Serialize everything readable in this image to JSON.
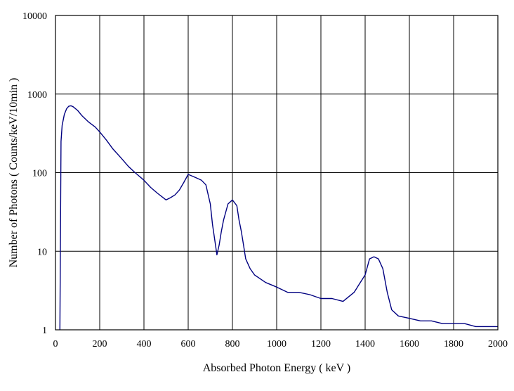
{
  "chart_data": {
    "type": "line",
    "title": "",
    "xlabel": "Absorbed Photon Energy  ( keV )",
    "ylabel": "Number  of Photons ( Counts/keV/10min  )",
    "xlim": [
      0,
      2000
    ],
    "ylim": [
      1,
      10000
    ],
    "yscale": "log",
    "grid": true,
    "legend": "none",
    "x_ticks": [
      "0",
      "200",
      "400",
      "600",
      "800",
      "1000",
      "1200",
      "1400",
      "1600",
      "1800",
      "2000"
    ],
    "y_ticks": [
      "1",
      "10",
      "100",
      "1000",
      "10000"
    ],
    "line_color": "#000080",
    "series": [
      {
        "x": [
          20,
          25,
          30,
          40,
          50,
          60,
          70,
          80,
          100,
          120,
          150,
          180,
          200,
          230,
          260,
          300,
          330,
          360,
          400,
          430,
          460,
          500,
          520,
          540,
          560,
          580,
          600,
          620,
          640,
          660,
          680,
          700,
          710,
          720,
          730,
          740,
          750,
          760,
          780,
          800,
          820,
          830,
          840,
          850,
          860,
          880,
          900,
          950,
          1000,
          1050,
          1100,
          1150,
          1200,
          1250,
          1300,
          1350,
          1400,
          1420,
          1440,
          1460,
          1480,
          1500,
          1520,
          1550,
          1600,
          1650,
          1700,
          1750,
          1800,
          1850,
          1900,
          1950,
          2000
        ],
        "y": [
          1,
          250,
          400,
          550,
          650,
          700,
          710,
          690,
          620,
          530,
          440,
          380,
          330,
          260,
          200,
          150,
          120,
          100,
          80,
          65,
          55,
          45,
          48,
          52,
          60,
          75,
          95,
          90,
          85,
          80,
          70,
          40,
          22,
          14,
          9,
          12,
          18,
          25,
          40,
          45,
          38,
          25,
          18,
          12,
          8,
          6,
          5,
          4,
          3.5,
          3,
          3,
          2.8,
          2.5,
          2.5,
          2.3,
          3,
          5,
          8,
          8.5,
          8,
          6,
          3,
          1.8,
          1.5,
          1.4,
          1.3,
          1.3,
          1.2,
          1.2,
          1.2,
          1.1,
          1.1,
          1.1
        ]
      }
    ]
  }
}
